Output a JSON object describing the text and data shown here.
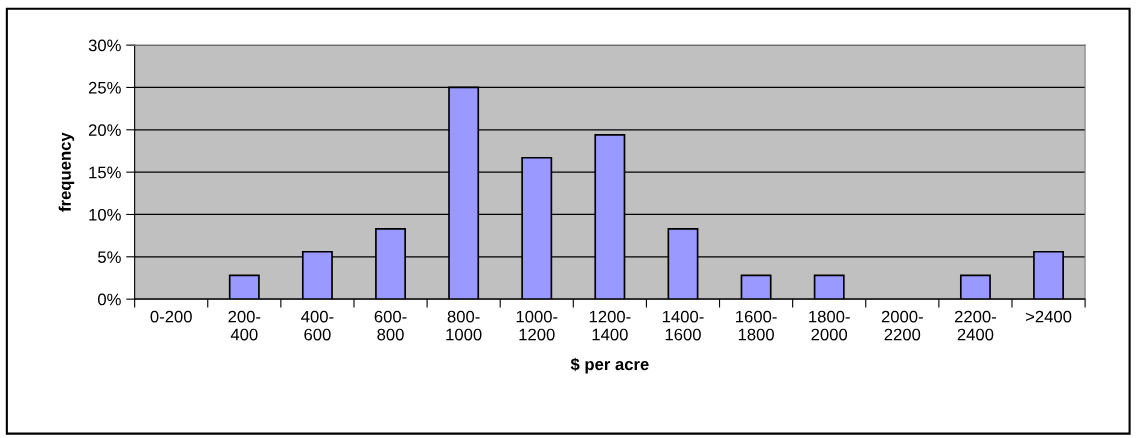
{
  "chart_data": {
    "type": "bar",
    "xlabel": "$ per acre",
    "ylabel": "frequency",
    "categories": [
      "0-200",
      "200-\n400",
      "400-\n600",
      "600-\n800",
      "800-\n1000",
      "1000-\n1200",
      "1200-\n1400",
      "1400-\n1600",
      "1600-\n1800",
      "1800-\n2000",
      "2000-\n2200",
      "2200-\n2400",
      ">2400"
    ],
    "values": [
      0,
      2.8,
      5.6,
      8.3,
      25.0,
      16.7,
      19.4,
      8.3,
      2.8,
      2.8,
      0,
      2.8,
      5.6
    ],
    "color": "#9999ff",
    "ylim": [
      0,
      30
    ],
    "yticks": [
      {
        "value": 0,
        "label": "0%"
      },
      {
        "value": 5,
        "label": "5%"
      },
      {
        "value": 10,
        "label": "10%"
      },
      {
        "value": 15,
        "label": "15%"
      },
      {
        "value": 20,
        "label": "20%"
      },
      {
        "value": 25,
        "label": "25%"
      },
      {
        "value": 30,
        "label": "30%"
      }
    ],
    "grid": "y"
  }
}
